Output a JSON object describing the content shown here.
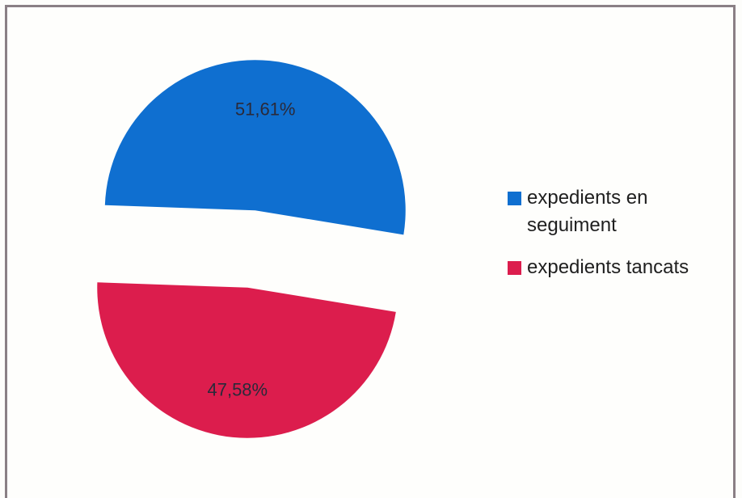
{
  "chart_data": {
    "type": "pie",
    "title": "",
    "series": [
      {
        "name": "expedients en seguiment",
        "value": 51.61,
        "label": "51,61%",
        "color": "#0f6fd0"
      },
      {
        "name": "expedients tancats",
        "value": 47.58,
        "label": "47,58%",
        "color": "#dc1d4d"
      }
    ],
    "exploded": true,
    "legend_position": "right"
  },
  "legend": {
    "items": [
      {
        "label": "expedients en seguiment",
        "color": "#0f6fd0"
      },
      {
        "label": "expedients tancats",
        "color": "#dc1d4d"
      }
    ]
  }
}
